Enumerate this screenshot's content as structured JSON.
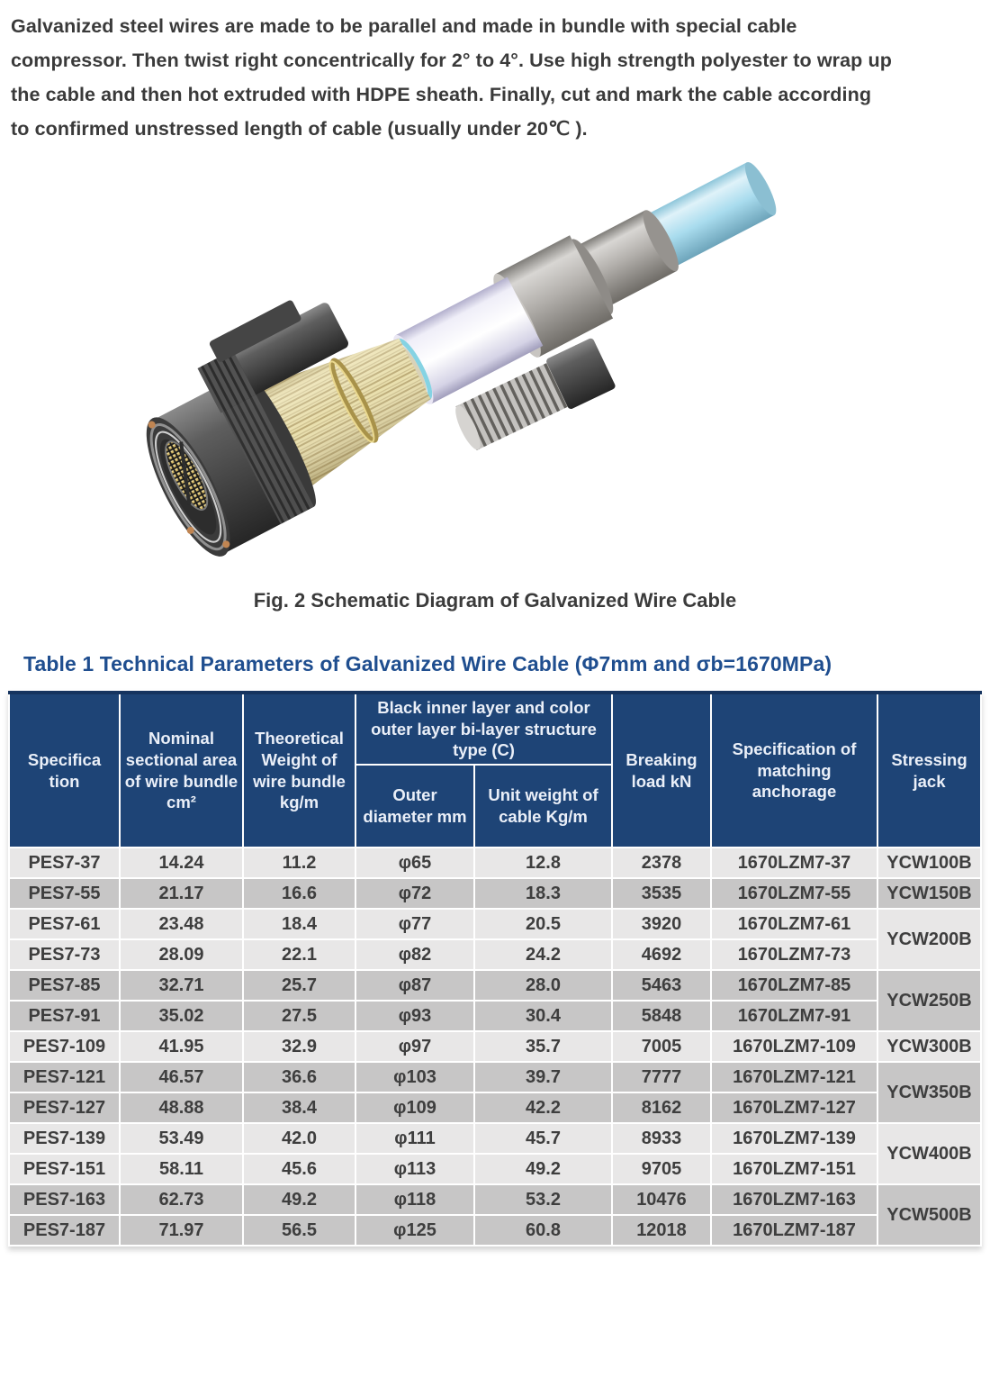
{
  "intro_lines": [
    "Galvanized steel wires are made to be parallel and made in bundle with special cable",
    "compressor. Then twist right concentrically for 2° to 4°. Use high strength polyester to wrap up",
    "the cable and then hot extruded with HDPE sheath. Finally, cut and mark the cable according",
    "to confirmed unstressed length of cable (usually under 20℃ )."
  ],
  "figure_caption": "Fig. 2 Schematic Diagram of Galvanized Wire Cable",
  "table_title": "Table 1 Technical Parameters of Galvanized Wire Cable (Φ7mm and σb=1670MPa)",
  "table": {
    "header": {
      "specification": "Specifica tion",
      "nominal_area": "Nominal sectional area of wire bundle cm²",
      "theoretical_weight": "Theoretical Weight of wire bundle kg/m",
      "bilayer_group": "Black inner layer and color outer layer bi-layer structure type (C)",
      "outer_diameter": "Outer diameter mm",
      "unit_weight": "Unit weight of cable Kg/m",
      "breaking_load": "Breaking load kN",
      "anchorage": "Specification of matching anchorage",
      "stressing_jack": "Stressing jack"
    },
    "rows": [
      {
        "spec": "PES7-37",
        "area": "14.24",
        "weight": "11.2",
        "outer_diameter": "φ65",
        "unit_weight": "12.8",
        "breaking_load": "2378",
        "anchorage": "1670LZM7-37",
        "jack": {
          "label": "YCW100B",
          "rowspan": 1
        },
        "shade": "light"
      },
      {
        "spec": "PES7-55",
        "area": "21.17",
        "weight": "16.6",
        "outer_diameter": "φ72",
        "unit_weight": "18.3",
        "breaking_load": "3535",
        "anchorage": "1670LZM7-55",
        "jack": {
          "label": "YCW150B",
          "rowspan": 1
        },
        "shade": "dark"
      },
      {
        "spec": "PES7-61",
        "area": "23.48",
        "weight": "18.4",
        "outer_diameter": "φ77",
        "unit_weight": "20.5",
        "breaking_load": "3920",
        "anchorage": "1670LZM7-61",
        "jack": {
          "label": "YCW200B",
          "rowspan": 2
        },
        "shade": "light"
      },
      {
        "spec": "PES7-73",
        "area": "28.09",
        "weight": "22.1",
        "outer_diameter": "φ82",
        "unit_weight": "24.2",
        "breaking_load": "4692",
        "anchorage": "1670LZM7-73",
        "jack": null,
        "shade": "light"
      },
      {
        "spec": "PES7-85",
        "area": "32.71",
        "weight": "25.7",
        "outer_diameter": "φ87",
        "unit_weight": "28.0",
        "breaking_load": "5463",
        "anchorage": "1670LZM7-85",
        "jack": {
          "label": "YCW250B",
          "rowspan": 2
        },
        "shade": "dark"
      },
      {
        "spec": "PES7-91",
        "area": "35.02",
        "weight": "27.5",
        "outer_diameter": "φ93",
        "unit_weight": "30.4",
        "breaking_load": "5848",
        "anchorage": "1670LZM7-91",
        "jack": null,
        "shade": "dark"
      },
      {
        "spec": "PES7-109",
        "area": "41.95",
        "weight": "32.9",
        "outer_diameter": "φ97",
        "unit_weight": "35.7",
        "breaking_load": "7005",
        "anchorage": "1670LZM7-109",
        "jack": {
          "label": "YCW300B",
          "rowspan": 1
        },
        "shade": "light"
      },
      {
        "spec": "PES7-121",
        "area": "46.57",
        "weight": "36.6",
        "outer_diameter": "φ103",
        "unit_weight": "39.7",
        "breaking_load": "7777",
        "anchorage": "1670LZM7-121",
        "jack": {
          "label": "YCW350B",
          "rowspan": 2
        },
        "shade": "dark"
      },
      {
        "spec": "PES7-127",
        "area": "48.88",
        "weight": "38.4",
        "outer_diameter": "φ109",
        "unit_weight": "42.2",
        "breaking_load": "8162",
        "anchorage": "1670LZM7-127",
        "jack": null,
        "shade": "dark"
      },
      {
        "spec": "PES7-139",
        "area": "53.49",
        "weight": "42.0",
        "outer_diameter": "φ111",
        "unit_weight": "45.7",
        "breaking_load": "8933",
        "anchorage": "1670LZM7-139",
        "jack": {
          "label": "YCW400B",
          "rowspan": 2
        },
        "shade": "light"
      },
      {
        "spec": "PES7-151",
        "area": "58.11",
        "weight": "45.6",
        "outer_diameter": "φ113",
        "unit_weight": "49.2",
        "breaking_load": "9705",
        "anchorage": "1670LZM7-151",
        "jack": null,
        "shade": "light"
      },
      {
        "spec": "PES7-163",
        "area": "62.73",
        "weight": "49.2",
        "outer_diameter": "φ118",
        "unit_weight": "53.2",
        "breaking_load": "10476",
        "anchorage": "1670LZM7-163",
        "jack": {
          "label": "YCW500B",
          "rowspan": 2
        },
        "shade": "dark"
      },
      {
        "spec": "PES7-187",
        "area": "71.97",
        "weight": "56.5",
        "outer_diameter": "φ125",
        "unit_weight": "60.8",
        "breaking_load": "12018",
        "anchorage": "1670LZM7-187",
        "jack": null,
        "shade": "dark"
      }
    ]
  },
  "colors": {
    "header_bg": "#1e4476",
    "header_text": "#eaeff8",
    "title_blue": "#1f4e8f",
    "row_light": "#e8e7e7",
    "row_dark": "#c7c6c6",
    "body_text": "#3e3e3e",
    "wire_tan": "#e9dfad",
    "cable_cyan": "#a9dcee"
  }
}
